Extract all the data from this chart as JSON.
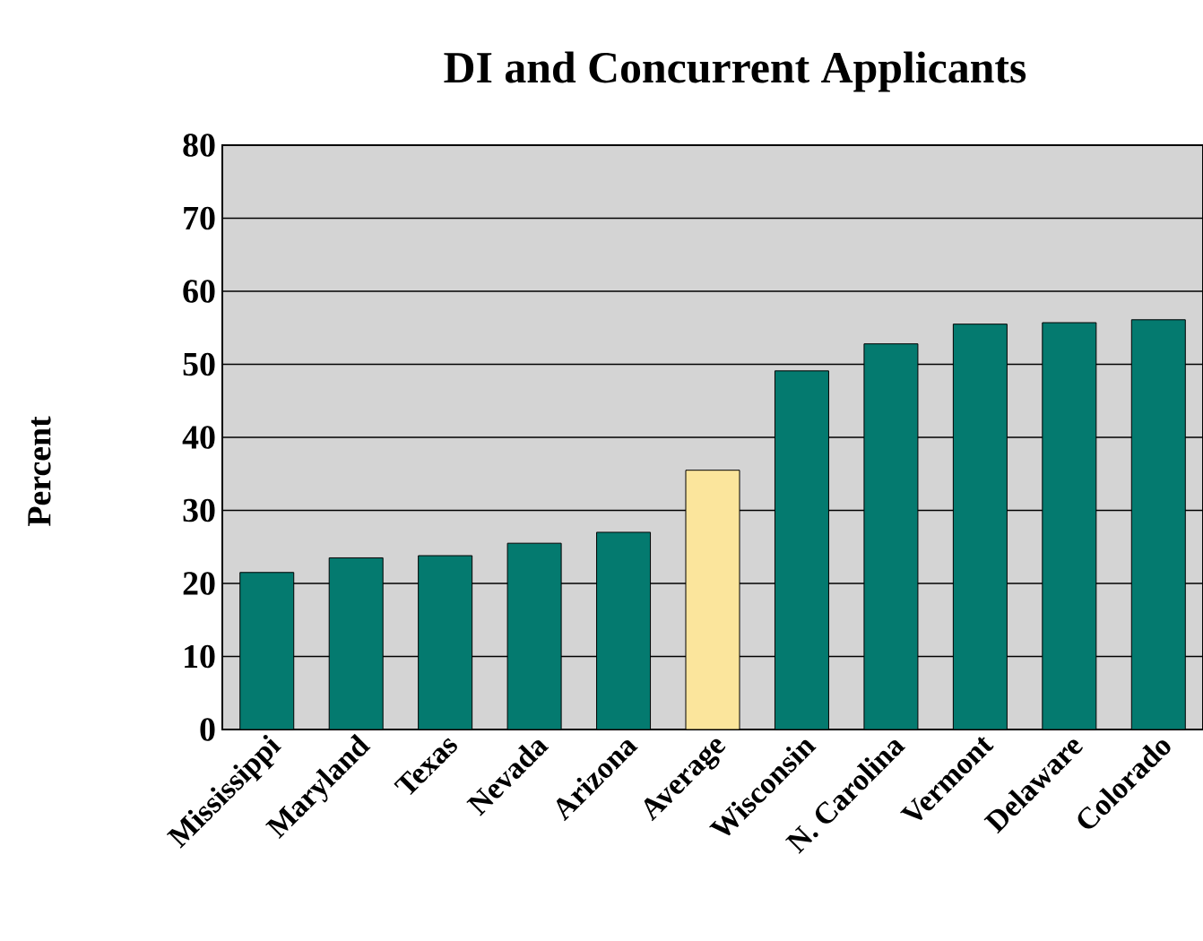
{
  "chart_data": {
    "type": "bar",
    "title": "DI and Concurrent Applicants",
    "ylabel": "Percent",
    "categories": [
      "Mississippi",
      "Maryland",
      "Texas",
      "Nevada",
      "Arizona",
      "Average",
      "Wisconsin",
      "N. Carolina",
      "Vermont",
      "Delaware",
      "Colorado"
    ],
    "values": [
      21.5,
      23.5,
      23.8,
      25.5,
      27.0,
      35.5,
      49.1,
      52.8,
      55.5,
      55.7,
      56.1
    ],
    "colors": [
      "#047a6f",
      "#047a6f",
      "#047a6f",
      "#047a6f",
      "#047a6f",
      "#fbe59c",
      "#047a6f",
      "#047a6f",
      "#047a6f",
      "#047a6f",
      "#047a6f"
    ],
    "ylim": [
      0,
      80
    ],
    "yticks": [
      0,
      10,
      20,
      30,
      40,
      50,
      60,
      70,
      80
    ],
    "grid": "y"
  }
}
